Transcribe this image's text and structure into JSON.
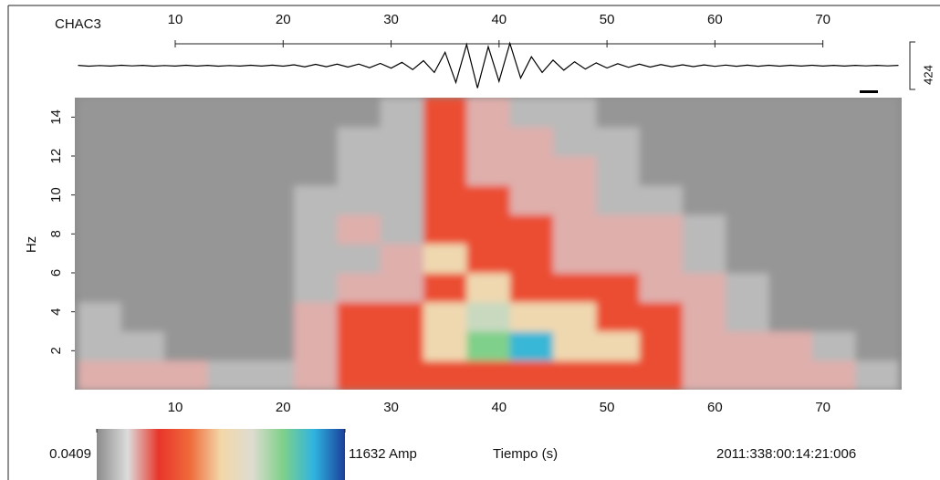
{
  "chart_data": {
    "type": "spectrogram",
    "station": "CHAC3",
    "ylabel": "Hz",
    "xlabel": "Tiempo (s)",
    "timestamp": "2011:338:00:14:21:006",
    "xlim": [
      0.7,
      77.3
    ],
    "xticks": [
      10,
      20,
      30,
      40,
      50,
      60,
      70
    ],
    "ylim": [
      0,
      15
    ],
    "yticks": [
      2,
      4,
      6,
      8,
      10,
      12,
      14
    ],
    "xbins": [
      1,
      5,
      9,
      13,
      17,
      21,
      25,
      29,
      33,
      37,
      41,
      45,
      49,
      53,
      57,
      61,
      65,
      69,
      73,
      77
    ],
    "ybins": [
      0,
      1.5,
      3,
      4.5,
      6,
      7.5,
      9,
      10.5,
      12,
      13.5,
      15
    ],
    "z": [
      [
        0.3,
        0.3,
        0.3,
        0.1,
        0.1,
        0.3,
        2,
        2,
        2,
        2,
        2,
        2,
        2,
        2,
        0.3,
        0.3,
        0.3,
        0.3,
        0.1
      ],
      [
        0.1,
        0.1,
        0.05,
        0.05,
        0.05,
        0.3,
        2,
        2,
        30,
        500,
        2000,
        30,
        30,
        2,
        0.3,
        0.3,
        0.3,
        0.1,
        0.05
      ],
      [
        0.1,
        0.05,
        0.05,
        0.05,
        0.05,
        0.3,
        2,
        2,
        30,
        150,
        30,
        30,
        2,
        2,
        0.3,
        0.1,
        0.05,
        0.05,
        0.05
      ],
      [
        0.05,
        0.05,
        0.05,
        0.05,
        0.05,
        0.1,
        0.3,
        0.3,
        2,
        30,
        2,
        2,
        2,
        0.3,
        0.3,
        0.1,
        0.05,
        0.05,
        0.05
      ],
      [
        0.05,
        0.05,
        0.05,
        0.05,
        0.05,
        0.1,
        0.1,
        0.3,
        30,
        2,
        2,
        0.3,
        0.3,
        0.3,
        0.1,
        0.05,
        0.05,
        0.05,
        0.05
      ],
      [
        0.05,
        0.05,
        0.05,
        0.05,
        0.05,
        0.1,
        0.3,
        0.1,
        2,
        2,
        2,
        0.3,
        0.3,
        0.3,
        0.1,
        0.05,
        0.05,
        0.05,
        0.05
      ],
      [
        0.05,
        0.05,
        0.05,
        0.05,
        0.05,
        0.1,
        0.1,
        0.1,
        2,
        2,
        0.3,
        0.3,
        0.1,
        0.1,
        0.05,
        0.05,
        0.05,
        0.05,
        0.05
      ],
      [
        0.05,
        0.05,
        0.05,
        0.05,
        0.05,
        0.05,
        0.1,
        0.1,
        2,
        0.3,
        0.3,
        0.3,
        0.1,
        0.05,
        0.05,
        0.05,
        0.05,
        0.05,
        0.05
      ],
      [
        0.05,
        0.05,
        0.05,
        0.05,
        0.05,
        0.05,
        0.1,
        0.1,
        2,
        0.3,
        0.3,
        0.1,
        0.1,
        0.05,
        0.05,
        0.05,
        0.05,
        0.05,
        0.05
      ],
      [
        0.05,
        0.05,
        0.05,
        0.05,
        0.05,
        0.05,
        0.05,
        0.1,
        2,
        0.3,
        0.1,
        0.1,
        0.05,
        0.05,
        0.05,
        0.05,
        0.05,
        0.05,
        0.05
      ]
    ],
    "zlim": [
      0.0409,
      11632
    ],
    "zticks": [
      0.0409,
      {
        "value": 11632,
        "label": "11632 Amp"
      }
    ],
    "zscale": "log",
    "colormap": [
      "#8c8c8c",
      "#dcdcdc",
      "#e8352a",
      "#ef6a3a",
      "#f3d7a8",
      "#dedcd0",
      "#7fd08a",
      "#2fb4e0",
      "#1a3f9a"
    ],
    "trace": {
      "color": "#000000",
      "ylim": [
        -212,
        212
      ],
      "scale": 424,
      "x": [
        1,
        2,
        3,
        4,
        5,
        6,
        7,
        8,
        9,
        10,
        11,
        12,
        13,
        14,
        15,
        16,
        17,
        18,
        19,
        20,
        21,
        22,
        23,
        24,
        25,
        26,
        27,
        28,
        29,
        30,
        31,
        32,
        33,
        34,
        35,
        36,
        37,
        38,
        39,
        40,
        41,
        42,
        43,
        44,
        45,
        46,
        47,
        48,
        49,
        50,
        51,
        52,
        53,
        54,
        55,
        56,
        57,
        58,
        59,
        60,
        61,
        62,
        63,
        64,
        65,
        66,
        67,
        68,
        69,
        70,
        71,
        72,
        73,
        74,
        75,
        76,
        77
      ],
      "values": [
        3,
        -4,
        2,
        -3,
        4,
        -2,
        3,
        -4,
        2,
        -3,
        4,
        -3,
        3,
        -4,
        2,
        -3,
        4,
        -3,
        5,
        -4,
        8,
        -10,
        12,
        -9,
        14,
        -12,
        15,
        -18,
        20,
        -22,
        30,
        -35,
        45,
        -60,
        120,
        -150,
        190,
        -200,
        170,
        -140,
        200,
        -110,
        80,
        -60,
        50,
        -40,
        35,
        -30,
        25,
        -20,
        18,
        -15,
        14,
        -12,
        10,
        -9,
        8,
        -8,
        7,
        -6,
        6,
        -5,
        5,
        -5,
        4,
        -4,
        4,
        -3,
        4,
        -3,
        3,
        -3,
        3,
        -2,
        3,
        -2,
        3
      ]
    }
  }
}
